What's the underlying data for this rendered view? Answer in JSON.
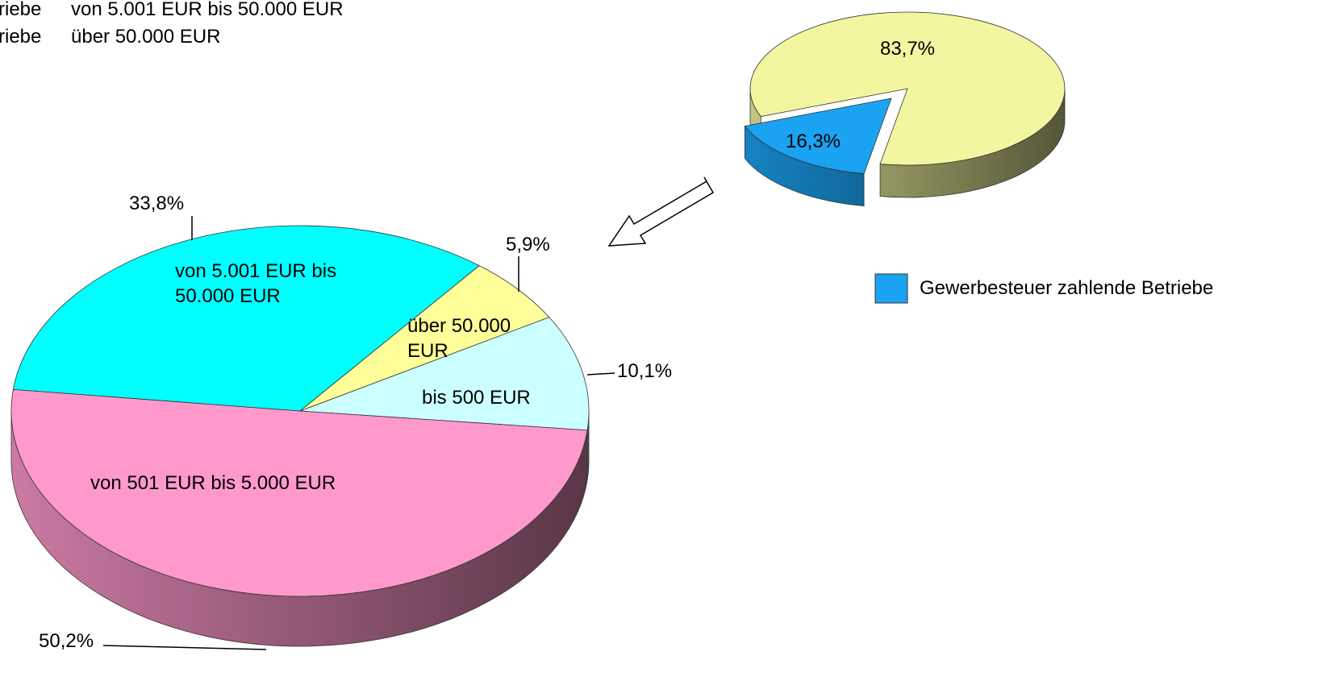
{
  "top_legend": [
    {
      "label": "riebe",
      "text": "von 5.001 EUR  bis 50.000 EUR"
    },
    {
      "label": "riebe",
      "text": "über 50.000 EUR"
    }
  ],
  "chart_data": [
    {
      "type": "pie3d",
      "categories": [
        null,
        "Gewerbesteuer zahlende Betriebe"
      ],
      "values": [
        83.7,
        16.3
      ],
      "value_labels": [
        "83,7%",
        "16,3%"
      ],
      "colors": [
        "#f2f6a0",
        "#1aa3f2"
      ],
      "legend": "right"
    },
    {
      "type": "pie3d",
      "categories": [
        "bis 500 EUR",
        "von 501 EUR bis 5.000 EUR",
        "von 5.001 EUR bis 50.000 EUR",
        "über 50.000 EUR"
      ],
      "values": [
        10.1,
        50.2,
        33.8,
        5.9
      ],
      "value_labels": [
        "10,1%",
        "50,2%",
        "33,8%",
        "5,9%"
      ],
      "colors": [
        "#ccffff",
        "#ff99cc",
        "#00ffff",
        "#ffff99"
      ]
    }
  ]
}
